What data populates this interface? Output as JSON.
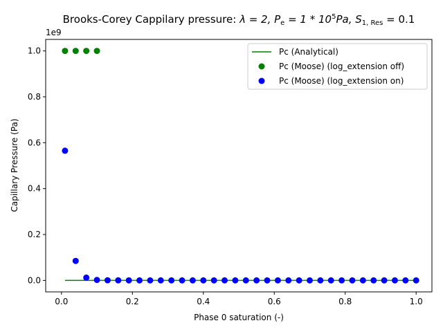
{
  "chart_data": {
    "type": "scatter",
    "title_parts": {
      "prefix": "Brooks-Corey Cappilary pressure: ",
      "lambda": "λ = 2, ",
      "pe_1": "P",
      "pe_sub": "e",
      "pe_2": " = 1 * 10",
      "pe_sup": "5",
      "pe_3": "Pa, ",
      "s_1": "S",
      "s_sub": "1, Res",
      "s_2": " = 0.1"
    },
    "xlabel": "Phase 0 saturation (-)",
    "ylabel": "Capillary Pressure (Pa)",
    "y_multiplier": "1e9",
    "xlim": [
      -0.0445,
      1.0445
    ],
    "ylim": [
      -0.05,
      1.05
    ],
    "x_ticks": [
      0.0,
      0.2,
      0.4,
      0.6,
      0.8,
      1.0
    ],
    "x_tick_labels": [
      "0.0",
      "0.2",
      "0.4",
      "0.6",
      "0.8",
      "1.0"
    ],
    "y_ticks": [
      0.0,
      0.2,
      0.4,
      0.6,
      0.8,
      1.0
    ],
    "y_tick_labels": [
      "0.0",
      "0.2",
      "0.4",
      "0.6",
      "0.8",
      "1.0"
    ],
    "grid": false,
    "legend_placement": "top-right",
    "series": [
      {
        "name": "Pc (Analytical)",
        "kind": "line",
        "color": "#008000",
        "x": [
          0.01,
          0.1,
          0.2,
          0.3,
          0.4,
          0.5,
          0.6,
          0.7,
          0.8,
          0.9,
          1.0
        ],
        "y": [
          0.0002,
          0.0001,
          0.0001,
          0.0001,
          0.0001,
          0.0001,
          0.0001,
          0.0001,
          0.0001,
          0.0001,
          0.0001
        ]
      },
      {
        "name": "Pc (Moose) (log_extension off)",
        "kind": "marker",
        "color": "#008000",
        "x": [
          0.01,
          0.04,
          0.07,
          0.1
        ],
        "y": [
          1.0,
          1.0,
          1.0,
          1.0
        ]
      },
      {
        "name": "Pc (Moose) (log_extension on)",
        "kind": "marker",
        "color": "#0000ff",
        "x": [
          0.01,
          0.04,
          0.07,
          0.1,
          0.13,
          0.16,
          0.19,
          0.22,
          0.25,
          0.28,
          0.31,
          0.34,
          0.37,
          0.4,
          0.43,
          0.46,
          0.49,
          0.52,
          0.55,
          0.58,
          0.61,
          0.64,
          0.67,
          0.7,
          0.73,
          0.76,
          0.79,
          0.82,
          0.85,
          0.88,
          0.91,
          0.94,
          0.97,
          1.0
        ],
        "y": [
          0.565,
          0.085,
          0.012,
          0.002,
          0.0005,
          0.0003,
          0.0002,
          0.0001,
          0.0001,
          0.0001,
          0.0001,
          0.0001,
          0.0001,
          0.0001,
          0.0001,
          0.0001,
          0.0001,
          0.0001,
          0.0001,
          0.0001,
          0.0001,
          0.0001,
          0.0001,
          0.0001,
          0.0001,
          0.0001,
          0.0001,
          0.0001,
          0.0001,
          0.0001,
          0.0001,
          0.0001,
          0.0001,
          0.0001
        ]
      }
    ]
  }
}
